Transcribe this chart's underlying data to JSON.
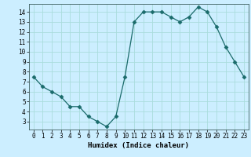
{
  "x": [
    0,
    1,
    2,
    3,
    4,
    5,
    6,
    7,
    8,
    9,
    10,
    11,
    12,
    13,
    14,
    15,
    16,
    17,
    18,
    19,
    20,
    21,
    22,
    23
  ],
  "y": [
    7.5,
    6.5,
    6.0,
    5.5,
    4.5,
    4.5,
    3.5,
    3.0,
    2.5,
    3.5,
    7.5,
    13.0,
    14.0,
    14.0,
    14.0,
    13.5,
    13.0,
    13.5,
    14.5,
    14.0,
    12.5,
    10.5,
    9.0,
    7.5
  ],
  "line_color": "#1a6b6b",
  "marker": "D",
  "marker_size": 2.5,
  "bg_color": "#cceeff",
  "grid_color": "#aadddd",
  "xlabel": "Humidex (Indice chaleur)",
  "ylabel": "",
  "xlim": [
    -0.5,
    23.5
  ],
  "ylim": [
    2.2,
    14.8
  ],
  "yticks": [
    3,
    4,
    5,
    6,
    7,
    8,
    9,
    10,
    11,
    12,
    13,
    14
  ],
  "xticks": [
    0,
    1,
    2,
    3,
    4,
    5,
    6,
    7,
    8,
    9,
    10,
    11,
    12,
    13,
    14,
    15,
    16,
    17,
    18,
    19,
    20,
    21,
    22,
    23
  ],
  "xtick_labels": [
    "0",
    "1",
    "2",
    "3",
    "4",
    "5",
    "6",
    "7",
    "8",
    "9",
    "10",
    "11",
    "12",
    "13",
    "14",
    "15",
    "16",
    "17",
    "18",
    "19",
    "20",
    "21",
    "22",
    "23"
  ],
  "label_fontsize": 6.5,
  "tick_fontsize": 5.5
}
